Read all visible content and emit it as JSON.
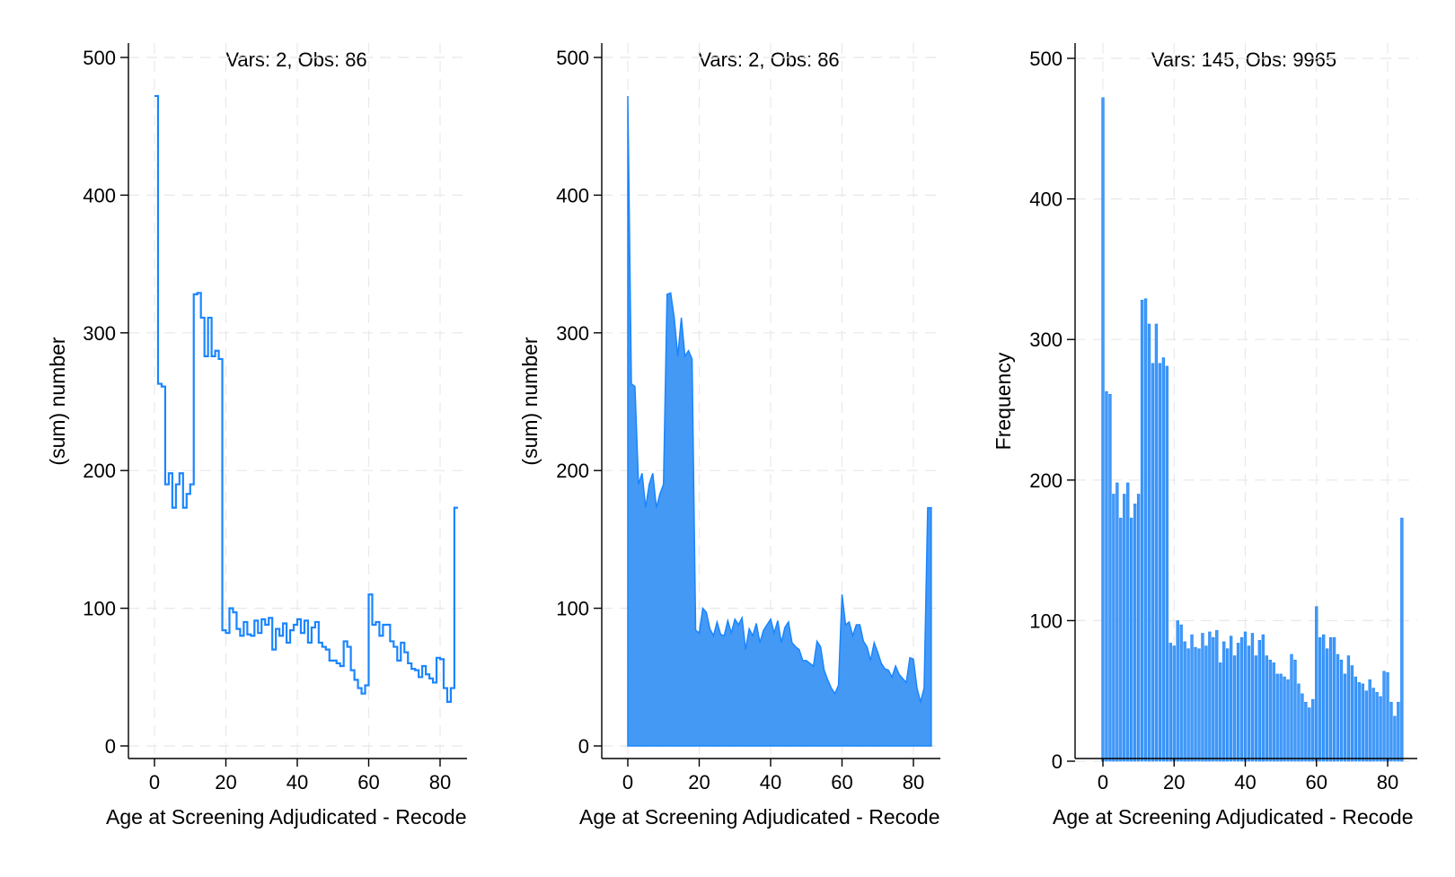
{
  "chart_data": [
    {
      "type": "line",
      "style": "step",
      "title": "Vars: 2, Obs: 86",
      "xlabel": "Age at Screening Adjudicated - Recode",
      "ylabel": "(sum) number",
      "xlim": [
        0,
        85
      ],
      "ylim": [
        0,
        500
      ],
      "xticks": [
        0,
        20,
        40,
        60,
        80
      ],
      "yticks": [
        0,
        100,
        200,
        300,
        400,
        500
      ],
      "grid": true,
      "color": "#1a85ff"
    },
    {
      "type": "area",
      "title": "Vars: 2, Obs: 86",
      "xlabel": "Age at Screening Adjudicated - Recode",
      "ylabel": "(sum) number",
      "xlim": [
        0,
        85
      ],
      "ylim": [
        0,
        500
      ],
      "xticks": [
        0,
        20,
        40,
        60,
        80
      ],
      "yticks": [
        0,
        100,
        200,
        300,
        400,
        500
      ],
      "grid": true,
      "color": "#1a85ff",
      "fill": "#4499f5"
    },
    {
      "type": "bar",
      "style": "histogram",
      "title": "Vars: 145, Obs: 9965",
      "xlabel": "Age at Screening Adjudicated - Recode",
      "ylabel": "Frequency",
      "xlim": [
        0,
        85
      ],
      "ylim": [
        0,
        500
      ],
      "xticks": [
        0,
        20,
        40,
        60,
        80
      ],
      "yticks": [
        0,
        100,
        200,
        300,
        400,
        500
      ],
      "grid": true,
      "color": "#1a85ff",
      "fill": "#4499f5"
    }
  ],
  "series_data": {
    "x": [
      0,
      1,
      2,
      3,
      4,
      5,
      6,
      7,
      8,
      9,
      10,
      11,
      12,
      13,
      14,
      15,
      16,
      17,
      18,
      19,
      20,
      21,
      22,
      23,
      24,
      25,
      26,
      27,
      28,
      29,
      30,
      31,
      32,
      33,
      34,
      35,
      36,
      37,
      38,
      39,
      40,
      41,
      42,
      43,
      44,
      45,
      46,
      47,
      48,
      49,
      50,
      51,
      52,
      53,
      54,
      55,
      56,
      57,
      58,
      59,
      60,
      61,
      62,
      63,
      64,
      65,
      66,
      67,
      68,
      69,
      70,
      71,
      72,
      73,
      74,
      75,
      76,
      77,
      78,
      79,
      80,
      81,
      82,
      83,
      84,
      85
    ],
    "values": [
      472,
      263,
      261,
      190,
      198,
      173,
      190,
      198,
      173,
      183,
      190,
      328,
      329,
      311,
      283,
      311,
      283,
      287,
      281,
      84,
      82,
      100,
      97,
      85,
      80,
      90,
      81,
      80,
      91,
      82,
      92,
      88,
      93,
      70,
      85,
      80,
      89,
      75,
      84,
      88,
      92,
      82,
      91,
      75,
      86,
      90,
      75,
      72,
      70,
      62,
      62,
      60,
      58,
      76,
      72,
      55,
      48,
      42,
      38,
      44,
      110,
      88,
      90,
      80,
      88,
      88,
      76,
      72,
      62,
      75,
      68,
      60,
      56,
      55,
      50,
      58,
      52,
      49,
      46,
      64,
      63,
      42,
      32,
      42,
      173,
      173
    ]
  }
}
